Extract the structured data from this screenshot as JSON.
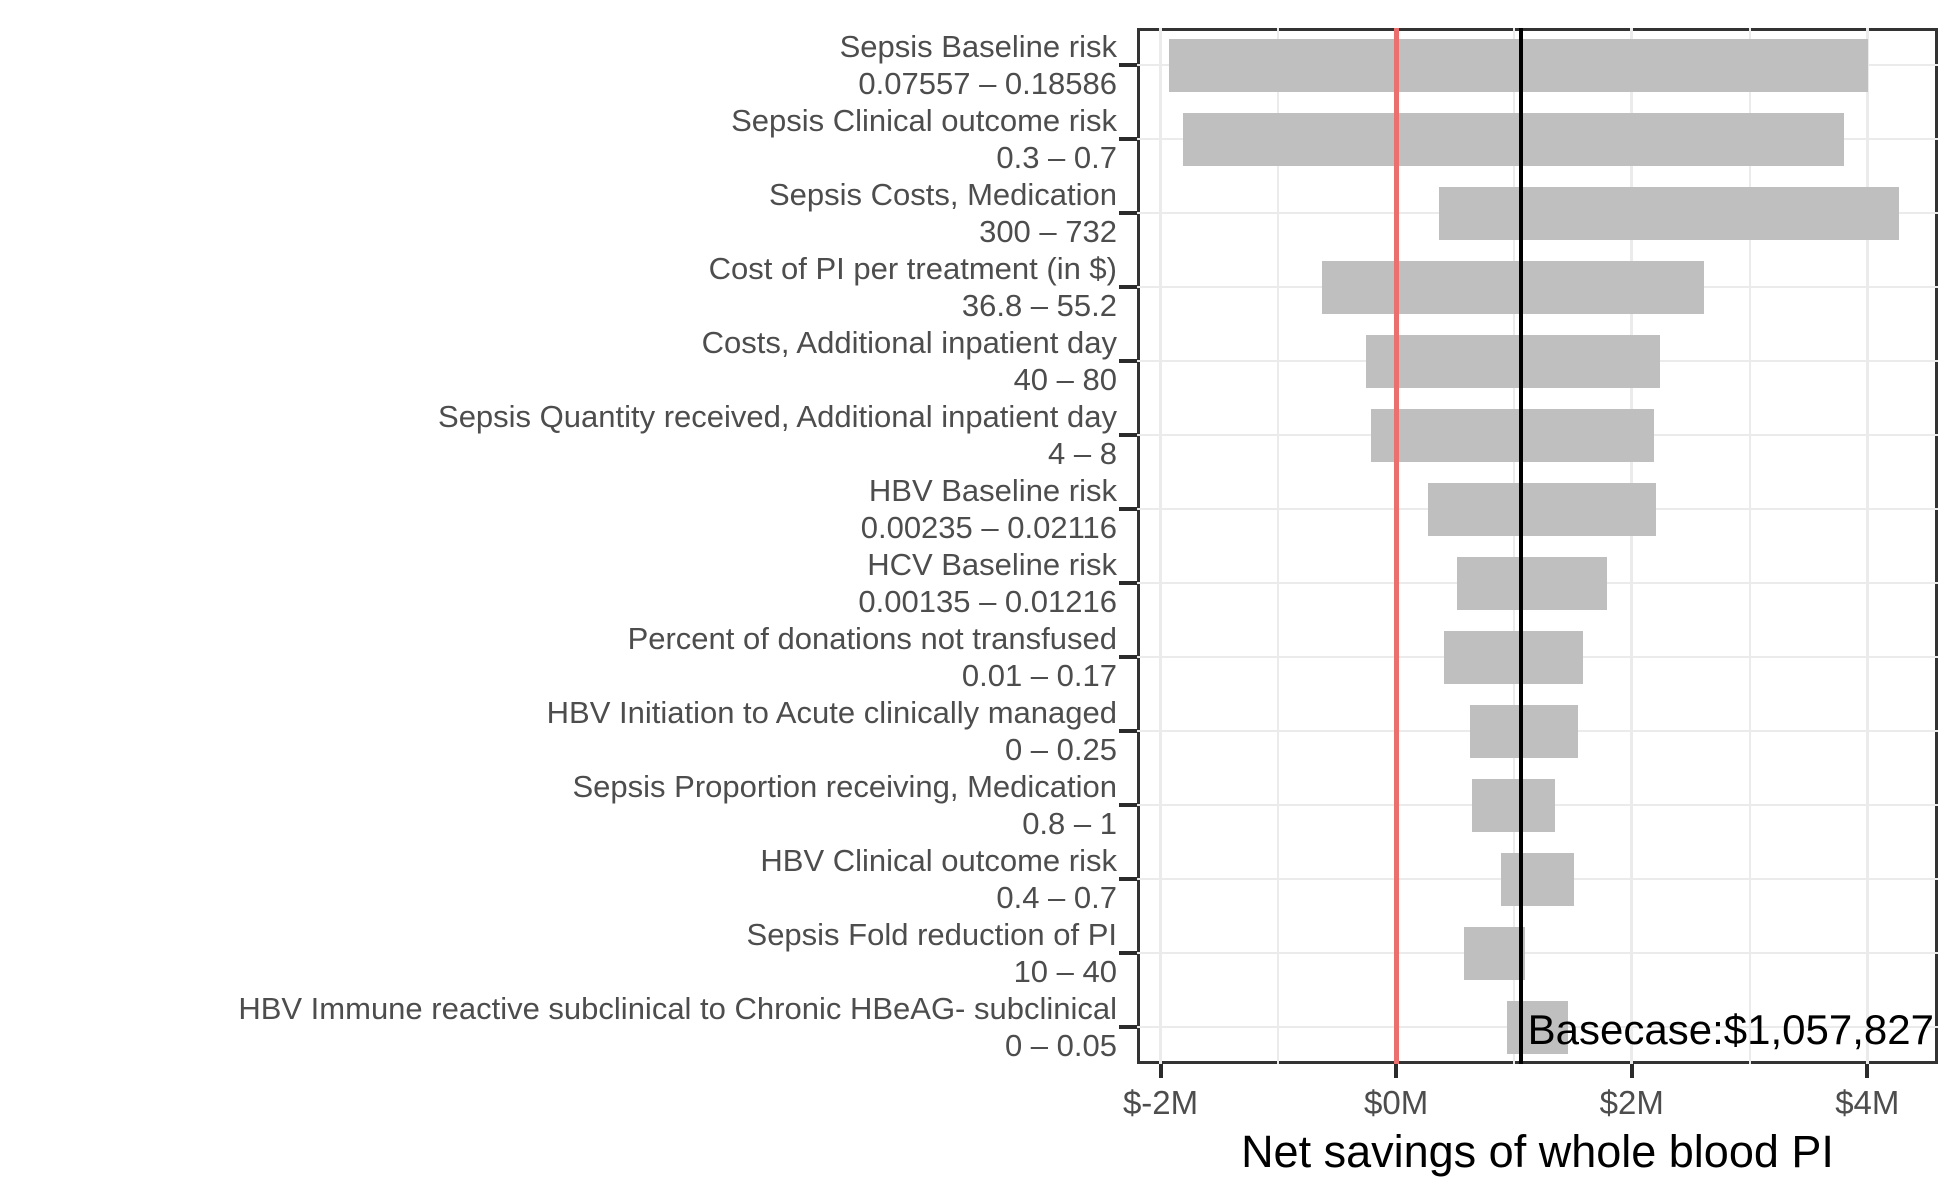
{
  "chart_data": {
    "type": "bar",
    "subtype": "tornado",
    "orientation": "horizontal",
    "title": "",
    "xlabel": "Net savings of whole blood PI",
    "ylabel": "",
    "xlim": [
      -2200000,
      4600000
    ],
    "grid": "on",
    "legend": "none",
    "x_ticks": {
      "values": [
        -2000000,
        0,
        2000000,
        4000000
      ],
      "labels": [
        "$-2M",
        "$0M",
        "$2M",
        "$4M"
      ]
    },
    "x_minor_ticks": [
      -1000000,
      1000000,
      3000000
    ],
    "zero_line": {
      "value": 0
    },
    "basecase": {
      "value": 1057827,
      "label": "Basecase:$1,057,827"
    },
    "bars": [
      {
        "name": "Sepsis Baseline risk",
        "range": "0.07557 – 0.18586",
        "low": -1930000,
        "high": 4010000
      },
      {
        "name": "Sepsis Clinical outcome risk",
        "range": "0.3 – 0.7",
        "low": -1810000,
        "high": 3800000
      },
      {
        "name": "Sepsis Costs, Medication",
        "range": "300 – 732",
        "low": 360000,
        "high": 4270000
      },
      {
        "name": "Cost of PI per treatment (in $)",
        "range": "36.8 – 55.2",
        "low": -630000,
        "high": 2610000
      },
      {
        "name": "Costs, Additional inpatient day",
        "range": "40 – 80",
        "low": -260000,
        "high": 2240000
      },
      {
        "name": "Sepsis Quantity received, Additional inpatient day",
        "range": "4 – 8",
        "low": -210000,
        "high": 2190000
      },
      {
        "name": "HBV Baseline risk",
        "range": "0.00235 – 0.02116",
        "low": 270000,
        "high": 2210000
      },
      {
        "name": "HCV Baseline risk",
        "range": "0.00135 – 0.01216",
        "low": 520000,
        "high": 1790000
      },
      {
        "name": "Percent of donations not transfused",
        "range": "0.01 – 0.17",
        "low": 410000,
        "high": 1590000
      },
      {
        "name": "HBV Initiation to Acute clinically managed",
        "range": "0 – 0.25",
        "low": 630000,
        "high": 1540000
      },
      {
        "name": "Sepsis Proportion receiving, Medication",
        "range": "0.8 – 1",
        "low": 640000,
        "high": 1350000
      },
      {
        "name": "HBV Clinical outcome risk",
        "range": "0.4 – 0.7",
        "low": 890000,
        "high": 1510000
      },
      {
        "name": "Sepsis Fold reduction of PI",
        "range": "10 – 40",
        "low": 580000,
        "high": 1090000
      },
      {
        "name": "HBV Immune reactive subclinical to Chronic HBeAG- subclinical",
        "range": "0 – 0.05",
        "low": 940000,
        "high": 1460000
      }
    ],
    "colors": {
      "bar": "#bfbfbf",
      "zero_line": "#e9706e",
      "basecase_line": "#000000",
      "grid": "#ebebeb",
      "panel_border": "#333333",
      "axis_text": "#4d4d4d",
      "annotation_text": "#000000",
      "background": "#ffffff"
    }
  }
}
